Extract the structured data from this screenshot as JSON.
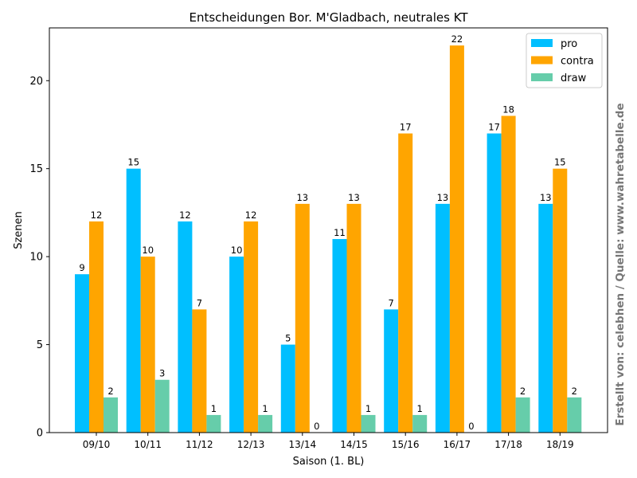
{
  "chart_data": {
    "type": "bar",
    "title": "Entscheidungen Bor. M'Gladbach, neutrales KT",
    "xlabel": "Saison (1. BL)",
    "ylabel": "Szenen",
    "categories": [
      "09/10",
      "10/11",
      "11/12",
      "12/13",
      "13/14",
      "14/15",
      "15/16",
      "16/17",
      "17/18",
      "18/19"
    ],
    "series": [
      {
        "name": "pro",
        "color": "#00bfff",
        "values": [
          9,
          15,
          12,
          10,
          5,
          11,
          7,
          13,
          17,
          13
        ]
      },
      {
        "name": "contra",
        "color": "#ffa500",
        "values": [
          12,
          10,
          7,
          12,
          13,
          13,
          17,
          22,
          18,
          15
        ]
      },
      {
        "name": "draw",
        "color": "#66cdaa",
        "values": [
          2,
          3,
          1,
          1,
          0,
          1,
          1,
          0,
          2,
          2
        ]
      }
    ],
    "ylim": [
      0,
      23
    ],
    "yticks": [
      0,
      5,
      10,
      15,
      20
    ],
    "grid": false,
    "legend_position": "top-right",
    "data_labels": true
  },
  "credit": "Erstellt von: celebhen / Quelle: www.wahretabelle.de"
}
